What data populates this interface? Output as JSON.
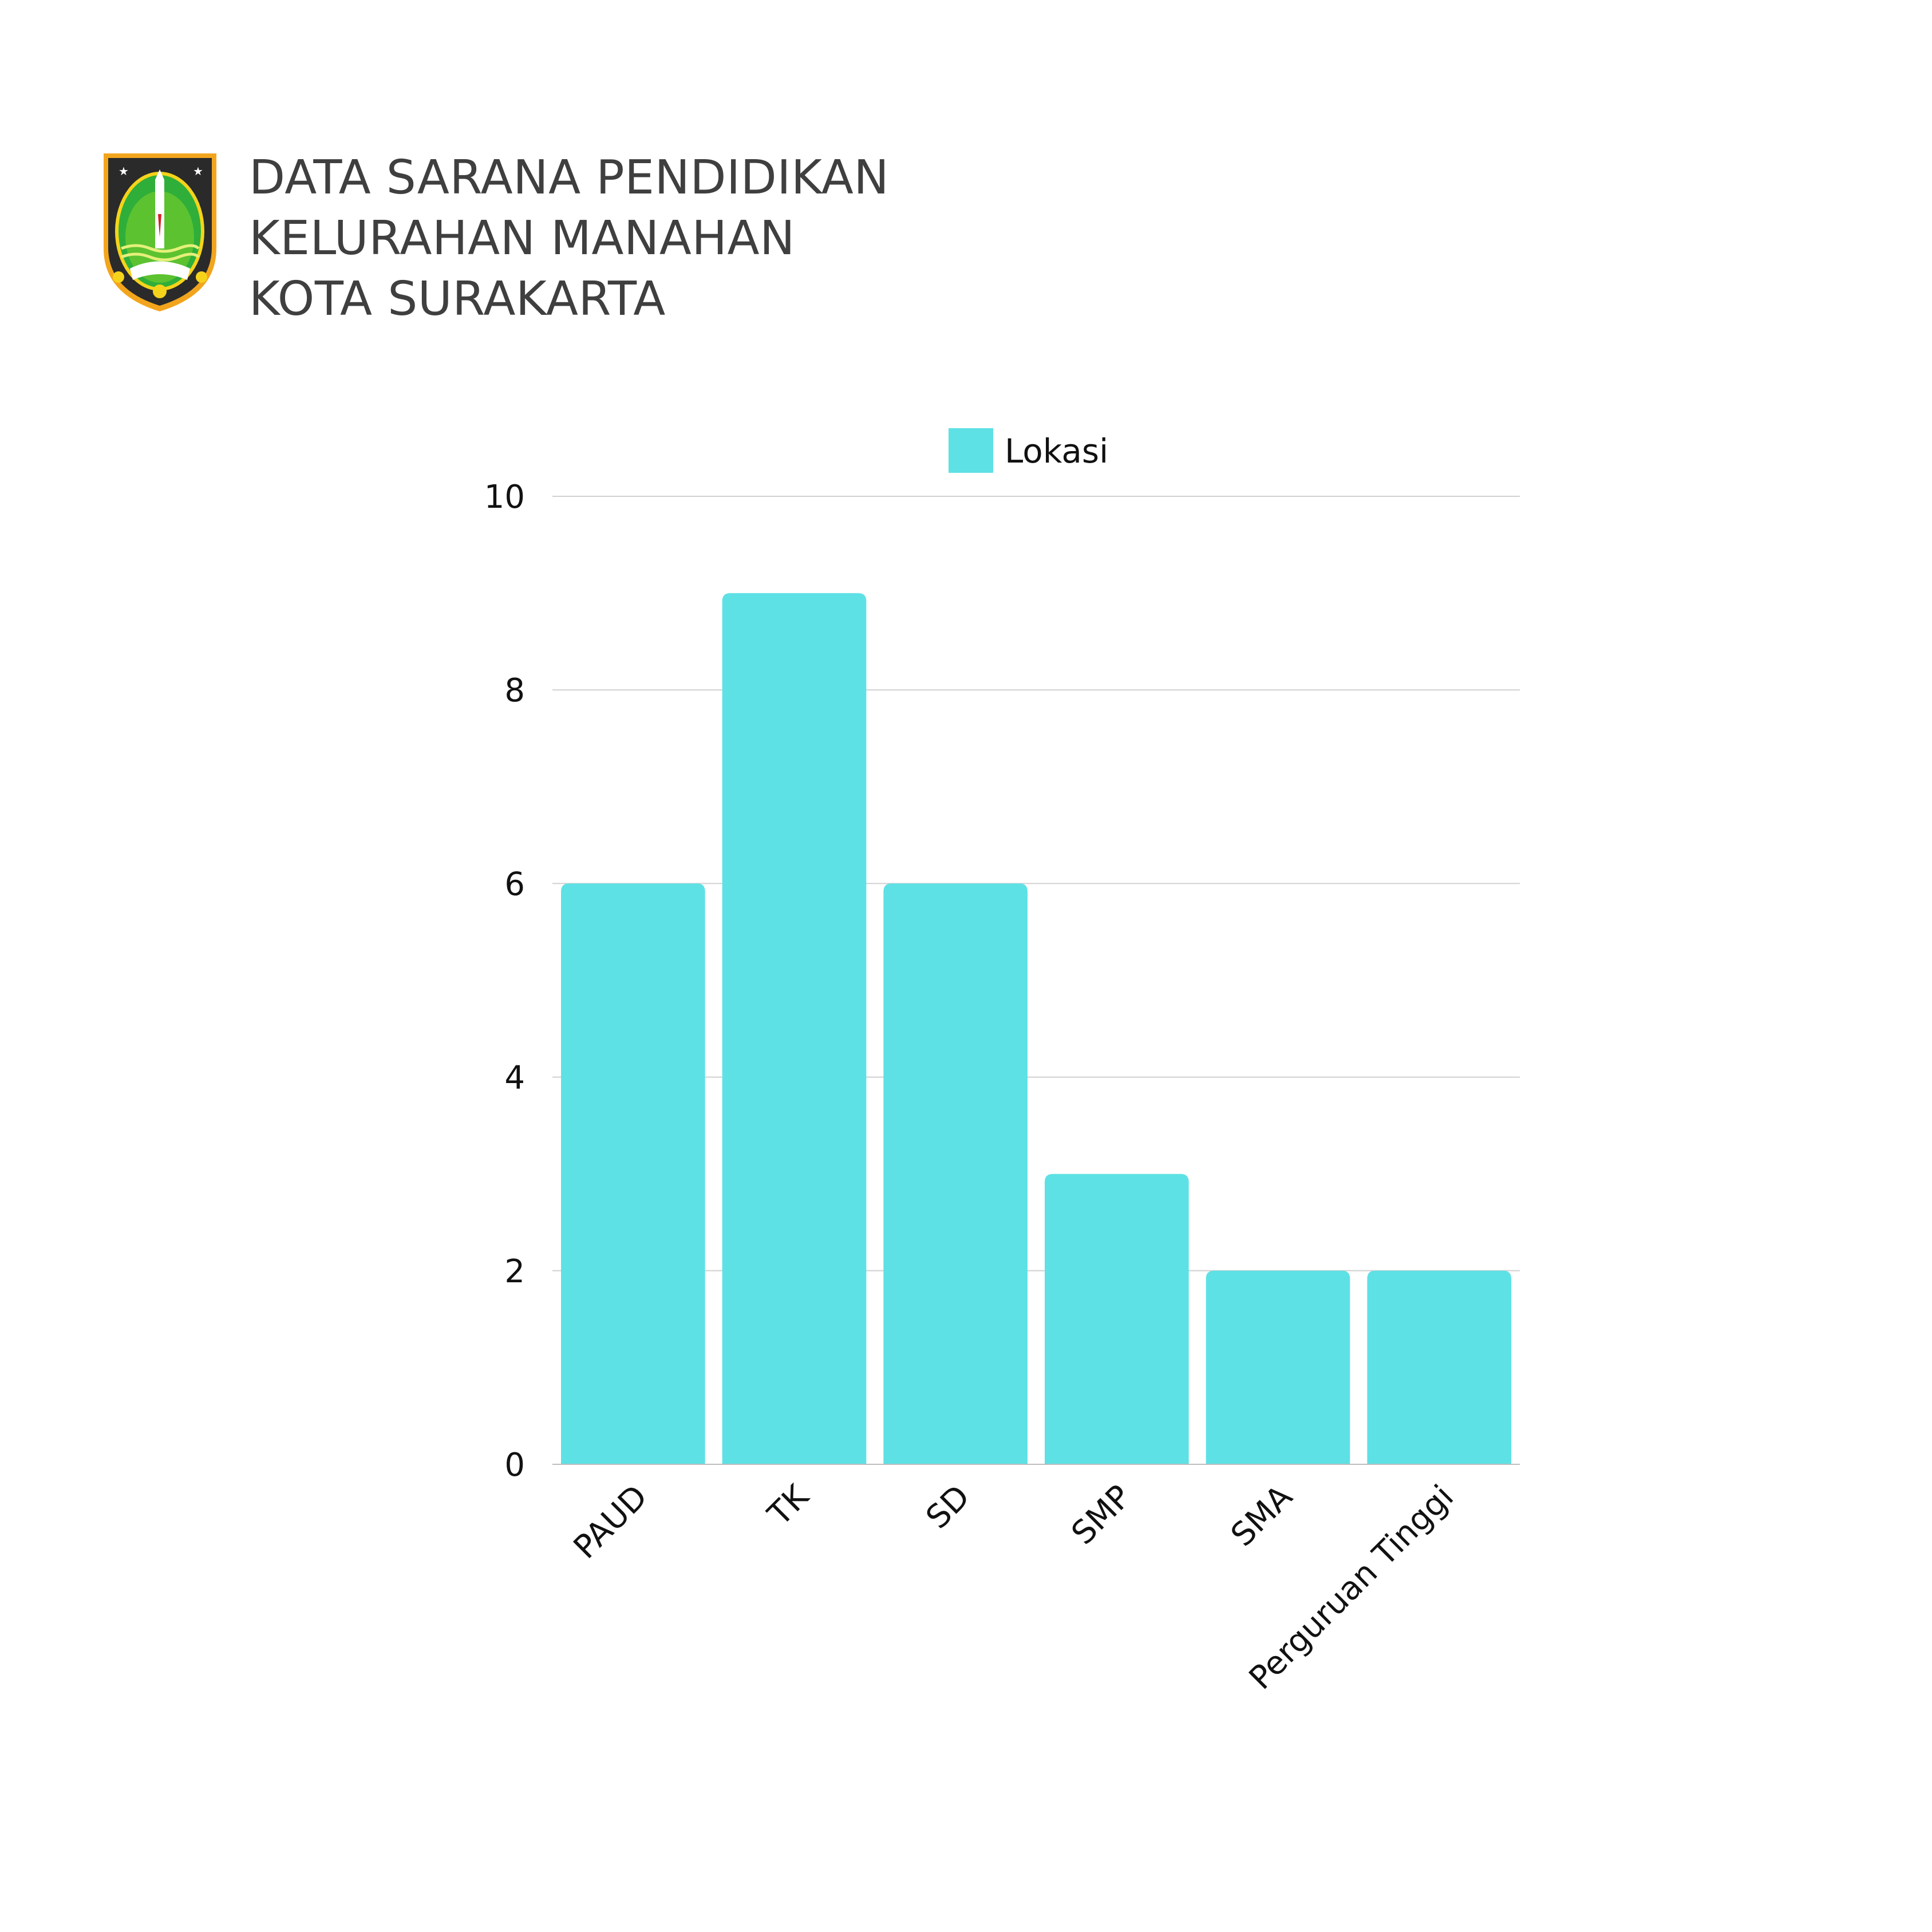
{
  "header": {
    "logo_icon": "surakarta-coat-of-arms-icon",
    "title_lines": [
      "DATA SARANA PENDIDIKAN",
      "KELURAHAN MANAHAN",
      "KOTA SURAKARTA"
    ]
  },
  "chart_data": {
    "type": "bar",
    "title": "DATA SARANA PENDIDIKAN KELURAHAN MANAHAN KOTA SURAKARTA",
    "categories": [
      "PAUD",
      "TK",
      "SD",
      "SMP",
      "SMA",
      "Perguruan Tinggi"
    ],
    "series": [
      {
        "name": "Lokasi",
        "values": [
          6,
          9,
          6,
          3,
          2,
          2
        ],
        "color": "#5ee1e5"
      }
    ],
    "xlabel": "",
    "ylabel": "",
    "ylim": [
      0,
      10
    ],
    "yticks": [
      0,
      2,
      4,
      6,
      8,
      10
    ],
    "grid": true,
    "legend": "top-center",
    "tick_label_rotation": -45
  }
}
